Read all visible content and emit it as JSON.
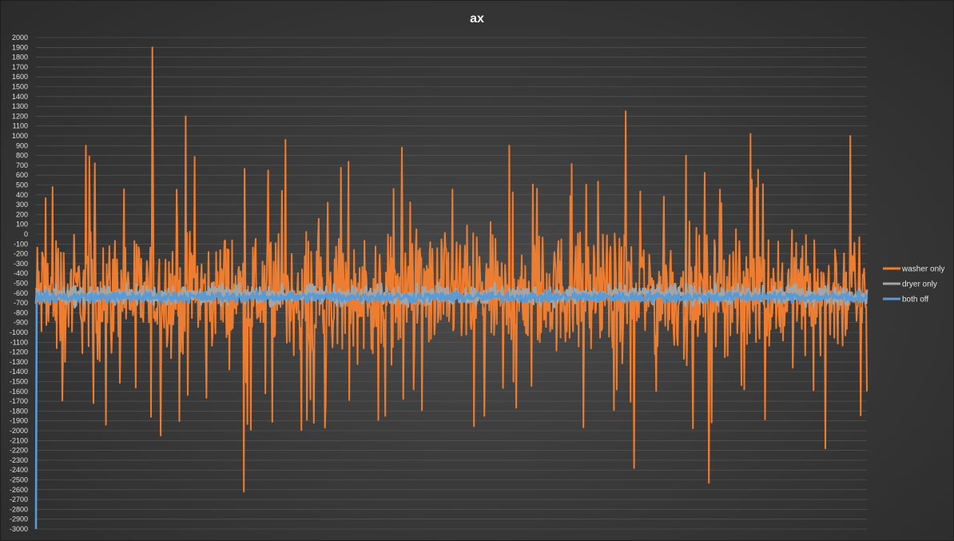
{
  "chart_data": {
    "type": "line",
    "title": "ax",
    "xlabel": "",
    "ylabel": "",
    "ylim": [
      -3000,
      2000
    ],
    "ytick_step": 100,
    "grid": true,
    "legend_position": "right",
    "n_points": 1200,
    "series": [
      {
        "name": "washer only",
        "color": "#ED7D31",
        "center": -600,
        "amp": 900,
        "spikes": [
          [
            0.02,
            480
          ],
          [
            0.06,
            900
          ],
          [
            0.14,
            1900
          ],
          [
            0.18,
            1200
          ],
          [
            0.25,
            1300
          ],
          [
            0.3,
            960
          ],
          [
            0.44,
            880
          ],
          [
            0.57,
            900
          ],
          [
            0.71,
            1250
          ],
          [
            0.86,
            1020
          ],
          [
            0.98,
            1000
          ],
          [
            0.035,
            -1300
          ],
          [
            0.15,
            -2050
          ],
          [
            0.25,
            -2620
          ],
          [
            0.42,
            -1850
          ],
          [
            0.54,
            -1850
          ],
          [
            0.72,
            -2380
          ],
          [
            0.81,
            -2530
          ],
          [
            0.95,
            -2180
          ],
          [
            1.0,
            -1600
          ]
        ]
      },
      {
        "name": "dryer only",
        "color": "#A5A5A5",
        "center": -620,
        "amp": 150,
        "spikes": []
      },
      {
        "name": "both off",
        "color": "#5B9BD5",
        "center": -640,
        "amp": 80,
        "spikes": [
          [
            0.0,
            -3000
          ]
        ]
      }
    ]
  }
}
